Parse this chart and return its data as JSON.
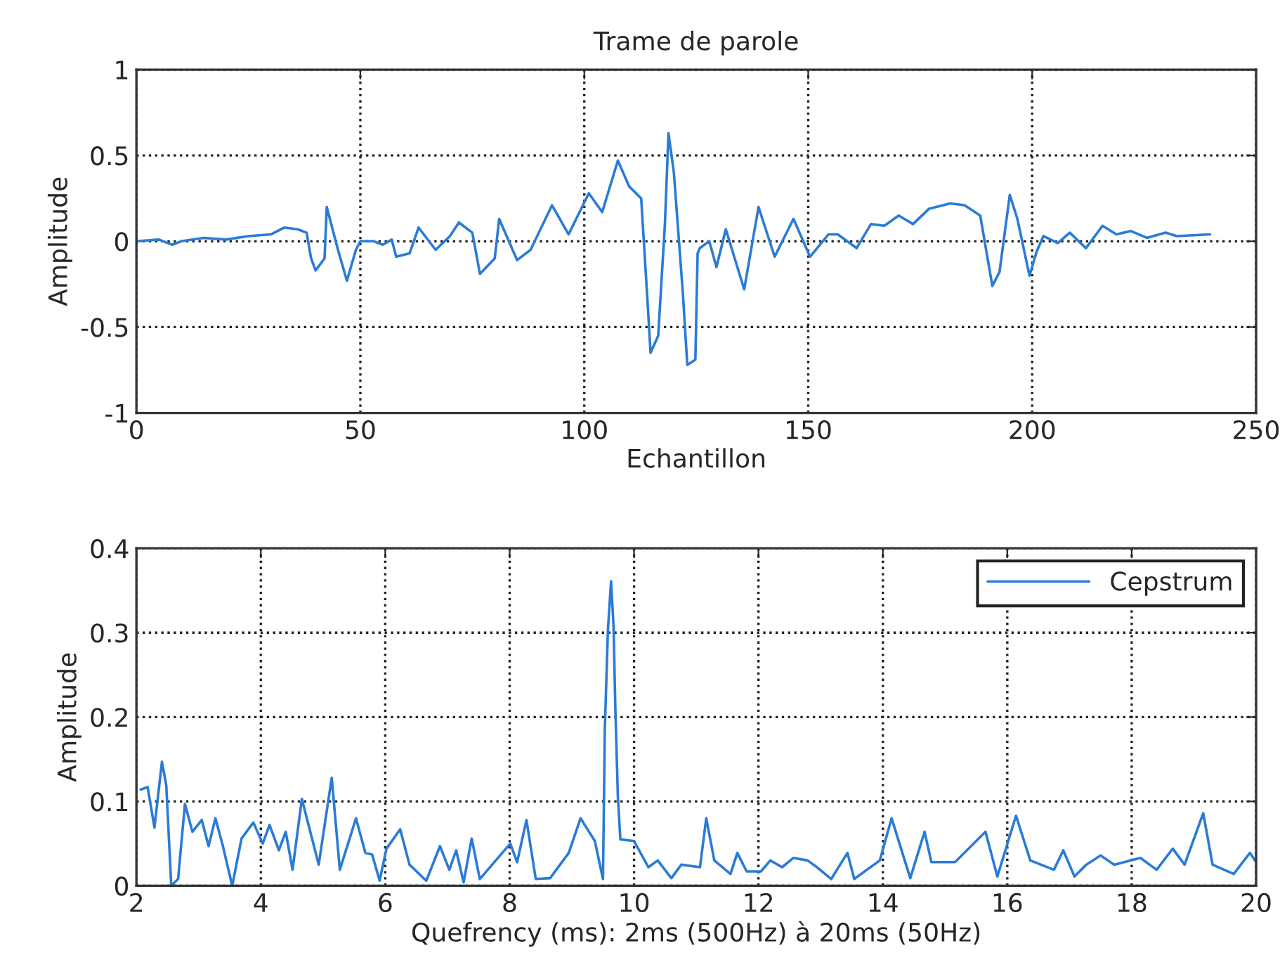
{
  "chart_data": [
    {
      "type": "line",
      "title": "Trame de parole",
      "xlabel": "Echantillon",
      "ylabel": "Amplitude",
      "xlim": [
        0,
        250
      ],
      "xticks": [
        0,
        50,
        100,
        150,
        200,
        250
      ],
      "ylim": [
        -1,
        1
      ],
      "yticks": [
        -1,
        -0.5,
        0,
        0.5,
        1
      ],
      "grid": true,
      "line_style": "solid",
      "series": [
        {
          "color": "#2b7bd6",
          "x": [
            0,
            5,
            8,
            10,
            15,
            20,
            25,
            30,
            33,
            36,
            38,
            39,
            40,
            42,
            42.5,
            45,
            47,
            49,
            50,
            53,
            55,
            57,
            58,
            61,
            63,
            66.8,
            70,
            72,
            75,
            76.7,
            80,
            81,
            85,
            88,
            92.8,
            96.5,
            101,
            104,
            107.5,
            110,
            112.7,
            114,
            114.8,
            116.5,
            118,
            118.8,
            120,
            122,
            123,
            124.8,
            125.3,
            125.8,
            127.9,
            129.5,
            131.6,
            135.7,
            138.9,
            142.5,
            146.7,
            150.4,
            154.5,
            156.6,
            160.8,
            164,
            167,
            170.2,
            173.4,
            177,
            181.7,
            184.9,
            188.4,
            191.1,
            192.7,
            195,
            196.7,
            199.4,
            201,
            202.5,
            205.7,
            208.4,
            212,
            215.7,
            218.8,
            222,
            225.6,
            229.8,
            232.3,
            239.7
          ],
          "values": [
            0.0,
            0.01,
            -0.02,
            0.0,
            0.02,
            0.01,
            0.03,
            0.04,
            0.08,
            0.07,
            0.05,
            -0.1,
            -0.17,
            -0.1,
            0.2,
            -0.05,
            -0.23,
            -0.05,
            0.0,
            0.0,
            -0.02,
            0.01,
            -0.09,
            -0.07,
            0.08,
            -0.05,
            0.03,
            0.11,
            0.05,
            -0.19,
            -0.1,
            0.13,
            -0.11,
            -0.05,
            0.21,
            0.04,
            0.28,
            0.17,
            0.47,
            0.32,
            0.25,
            -0.3,
            -0.65,
            -0.55,
            0.1,
            0.63,
            0.4,
            -0.3,
            -0.72,
            -0.69,
            -0.07,
            -0.04,
            0.0,
            -0.15,
            0.07,
            -0.28,
            0.2,
            -0.09,
            0.13,
            -0.09,
            0.04,
            0.04,
            -0.04,
            0.1,
            0.09,
            0.15,
            0.1,
            0.19,
            0.22,
            0.21,
            0.15,
            -0.26,
            -0.18,
            0.27,
            0.13,
            -0.2,
            -0.06,
            0.03,
            -0.01,
            0.05,
            -0.04,
            0.09,
            0.04,
            0.06,
            0.02,
            0.05,
            0.03,
            0.04
          ]
        }
      ]
    },
    {
      "type": "line",
      "xlabel": "Quefrency (ms): 2ms (500Hz) à 20ms (50Hz)",
      "ylabel": "Amplitude",
      "xlim": [
        2,
        20
      ],
      "xticks": [
        2,
        4,
        6,
        8,
        10,
        12,
        14,
        16,
        18,
        20
      ],
      "ylim": [
        0,
        0.4
      ],
      "yticks": [
        0,
        0.1,
        0.2,
        0.3,
        0.4
      ],
      "grid": true,
      "legend": "top right",
      "line_style": "solid",
      "series": [
        {
          "name": "Cepstrum",
          "color": "#2b7bd6",
          "x": [
            2.07,
            2.18,
            2.29,
            2.41,
            2.48,
            2.56,
            2.67,
            2.78,
            2.9,
            3.05,
            3.16,
            3.27,
            3.39,
            3.54,
            3.69,
            3.88,
            4.03,
            4.14,
            4.29,
            4.4,
            4.51,
            4.66,
            4.93,
            5.14,
            5.27,
            5.53,
            5.68,
            5.79,
            5.91,
            6.02,
            6.24,
            6.39,
            6.66,
            6.88,
            7.03,
            7.14,
            7.26,
            7.39,
            7.52,
            8.01,
            8.12,
            8.27,
            8.42,
            8.65,
            8.95,
            9.14,
            9.37,
            9.5,
            9.53,
            9.58,
            9.63,
            9.67,
            9.7,
            9.74,
            9.78,
            10.0,
            10.23,
            10.38,
            10.6,
            10.76,
            11.06,
            11.16,
            11.29,
            11.55,
            11.66,
            11.81,
            12.04,
            12.19,
            12.38,
            12.56,
            12.79,
            12.94,
            13.17,
            13.43,
            13.54,
            13.95,
            14.14,
            14.44,
            14.67,
            14.78,
            15.16,
            15.65,
            15.84,
            16.14,
            16.37,
            16.75,
            16.9,
            17.08,
            17.27,
            17.5,
            17.72,
            18.14,
            18.4,
            18.66,
            18.85,
            19.15,
            19.3,
            19.64,
            19.9,
            20.0
          ],
          "values": [
            0.114,
            0.117,
            0.069,
            0.147,
            0.119,
            0.0,
            0.008,
            0.097,
            0.064,
            0.078,
            0.047,
            0.08,
            0.047,
            0.0,
            0.056,
            0.075,
            0.05,
            0.072,
            0.042,
            0.064,
            0.019,
            0.103,
            0.025,
            0.128,
            0.019,
            0.08,
            0.039,
            0.037,
            0.006,
            0.044,
            0.067,
            0.025,
            0.006,
            0.047,
            0.019,
            0.042,
            0.004,
            0.056,
            0.008,
            0.05,
            0.028,
            0.078,
            0.008,
            0.009,
            0.039,
            0.08,
            0.053,
            0.008,
            0.186,
            0.303,
            0.361,
            0.308,
            0.208,
            0.105,
            0.055,
            0.053,
            0.022,
            0.03,
            0.009,
            0.025,
            0.022,
            0.08,
            0.03,
            0.014,
            0.039,
            0.017,
            0.017,
            0.03,
            0.022,
            0.033,
            0.03,
            0.022,
            0.008,
            0.039,
            0.008,
            0.03,
            0.08,
            0.009,
            0.064,
            0.028,
            0.028,
            0.064,
            0.011,
            0.083,
            0.03,
            0.019,
            0.042,
            0.011,
            0.025,
            0.036,
            0.025,
            0.033,
            0.019,
            0.044,
            0.025,
            0.086,
            0.025,
            0.014,
            0.039,
            0.028
          ]
        }
      ]
    }
  ]
}
